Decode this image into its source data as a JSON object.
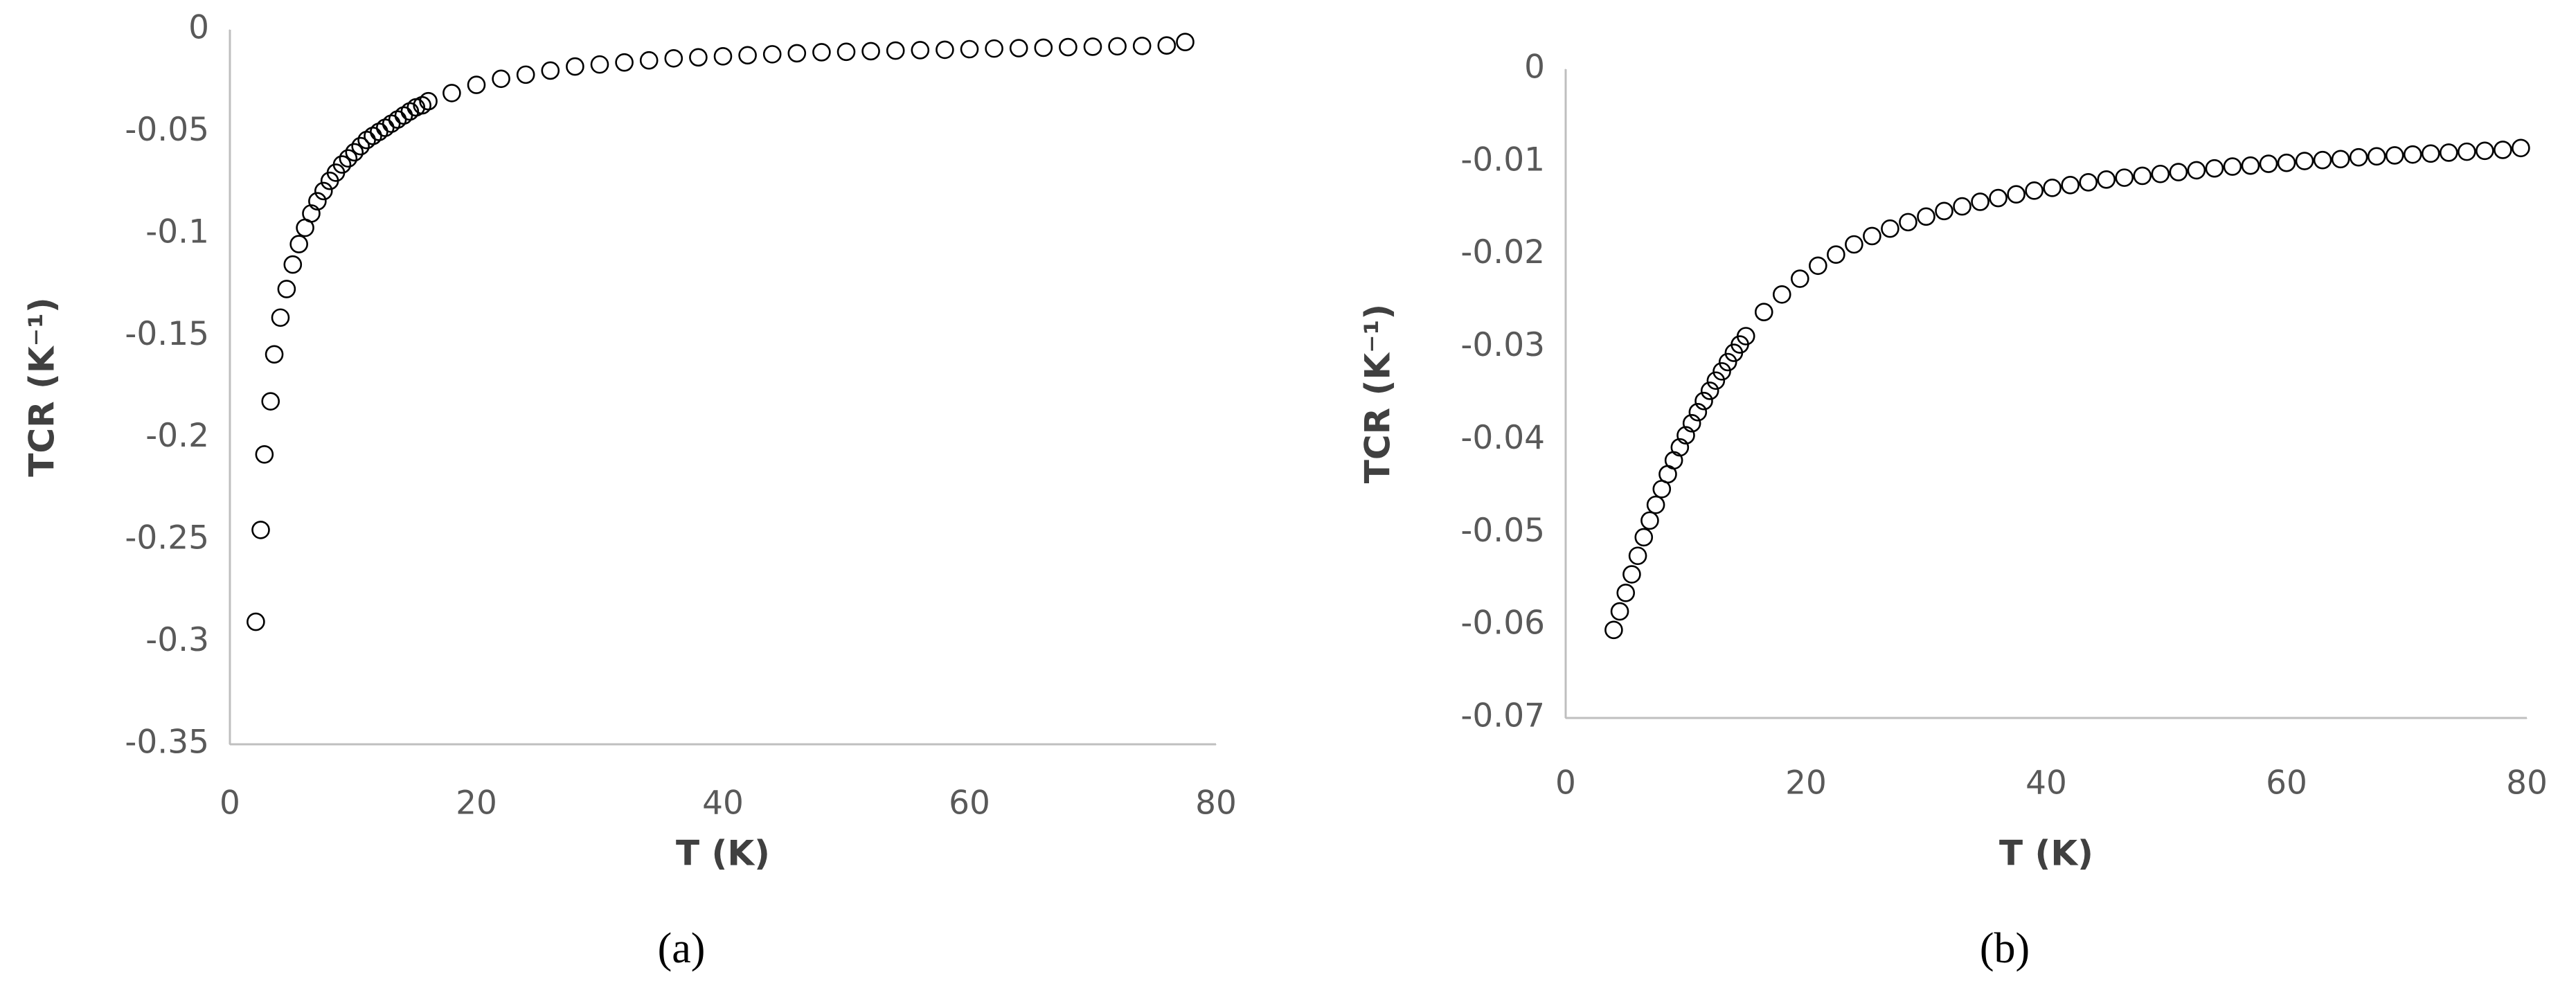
{
  "chart_data": [
    {
      "type": "scatter",
      "x_label": "T (K)",
      "y_label": "TCR (K⁻¹)",
      "caption": "(a)",
      "marker_color": "#000000",
      "axis_color": "#bfbfbf",
      "xlim": [
        0,
        80
      ],
      "xticks": [
        0,
        20,
        40,
        60,
        80
      ],
      "ylim": [
        -0.35,
        0
      ],
      "yticks": [
        -0.35,
        -0.3,
        -0.25,
        -0.2,
        -0.15,
        -0.1,
        -0.05,
        0
      ],
      "x": [
        2.1,
        2.5,
        2.8,
        3.3,
        3.6,
        4.1,
        4.6,
        5.1,
        5.6,
        6.1,
        6.6,
        7.1,
        7.6,
        8.1,
        8.6,
        9.1,
        9.6,
        10.1,
        10.6,
        11.1,
        11.6,
        12.1,
        12.6,
        13.1,
        13.6,
        14.1,
        14.6,
        15.1,
        15.6,
        16.1,
        18,
        20,
        22,
        24,
        26,
        28,
        30,
        32,
        34,
        36,
        38,
        40,
        42,
        44,
        46,
        48,
        50,
        52,
        54,
        56,
        58,
        60,
        62,
        64,
        66,
        68,
        70,
        72,
        74,
        76,
        77.5
      ],
      "values": [
        -0.29,
        -0.245,
        -0.208,
        -0.182,
        -0.159,
        -0.141,
        -0.127,
        -0.115,
        -0.105,
        -0.097,
        -0.09,
        -0.084,
        -0.079,
        -0.074,
        -0.07,
        -0.066,
        -0.063,
        -0.06,
        -0.057,
        -0.054,
        -0.052,
        -0.05,
        -0.048,
        -0.046,
        -0.044,
        -0.042,
        -0.04,
        -0.038,
        -0.037,
        -0.035,
        -0.031,
        -0.027,
        -0.024,
        -0.022,
        -0.02,
        -0.018,
        -0.017,
        -0.016,
        -0.015,
        -0.014,
        -0.0135,
        -0.013,
        -0.0125,
        -0.012,
        -0.0115,
        -0.011,
        -0.0108,
        -0.0105,
        -0.0102,
        -0.01,
        -0.0098,
        -0.0095,
        -0.0092,
        -0.009,
        -0.0088,
        -0.0085,
        -0.0083,
        -0.0081,
        -0.0079,
        -0.0077,
        -0.006
      ]
    },
    {
      "type": "scatter",
      "x_label": "T (K)",
      "y_label": "TCR (K⁻¹)",
      "caption": "(b)",
      "marker_color": "#000000",
      "axis_color": "#bfbfbf",
      "xlim": [
        0,
        80
      ],
      "xticks": [
        0,
        20,
        40,
        60,
        80
      ],
      "ylim": [
        -0.07,
        0
      ],
      "yticks": [
        -0.07,
        -0.06,
        -0.05,
        -0.04,
        -0.03,
        -0.02,
        -0.01,
        0
      ],
      "x": [
        4,
        4.5,
        5,
        5.5,
        6,
        6.5,
        7,
        7.5,
        8,
        8.5,
        9,
        9.5,
        10,
        10.5,
        11,
        11.5,
        12,
        12.5,
        13,
        13.5,
        14,
        14.5,
        15,
        16.5,
        18,
        19.5,
        21,
        22.5,
        24,
        25.5,
        27,
        28.5,
        30,
        31.5,
        33,
        34.5,
        36,
        37.5,
        39,
        40.5,
        42,
        43.5,
        45,
        46.5,
        48,
        49.5,
        51,
        52.5,
        54,
        55.5,
        57,
        58.5,
        60,
        61.5,
        63,
        64.5,
        66,
        67.5,
        69,
        70.5,
        72,
        73.5,
        75,
        76.5,
        78,
        79.5
      ],
      "values": [
        -0.0605,
        -0.0585,
        -0.0565,
        -0.0545,
        -0.0525,
        -0.0505,
        -0.0487,
        -0.047,
        -0.0453,
        -0.0437,
        -0.0422,
        -0.0408,
        -0.0395,
        -0.0382,
        -0.037,
        -0.0358,
        -0.0347,
        -0.0336,
        -0.0326,
        -0.0316,
        -0.0306,
        -0.0297,
        -0.0288,
        -0.0262,
        -0.0243,
        -0.0226,
        -0.0212,
        -0.02,
        -0.0189,
        -0.018,
        -0.0172,
        -0.0165,
        -0.0159,
        -0.0153,
        -0.0148,
        -0.0143,
        -0.0139,
        -0.0135,
        -0.0131,
        -0.0128,
        -0.0125,
        -0.0122,
        -0.0119,
        -0.0117,
        -0.0115,
        -0.0113,
        -0.0111,
        -0.0109,
        -0.0107,
        -0.0105,
        -0.0104,
        -0.0102,
        -0.0101,
        -0.0099,
        -0.0098,
        -0.0097,
        -0.0095,
        -0.0094,
        -0.0093,
        -0.0092,
        -0.0091,
        -0.009,
        -0.0089,
        -0.0088,
        -0.0087,
        -0.0085
      ]
    }
  ]
}
